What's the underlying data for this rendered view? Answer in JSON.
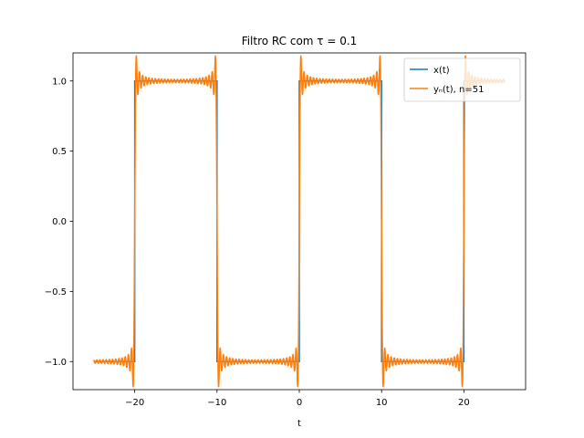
{
  "chart_data": {
    "type": "line",
    "title": "Filtro RC com τ = 0.1",
    "xlabel": "t",
    "ylabel": "",
    "xlim": [
      -27.5,
      27.5
    ],
    "ylim": [
      -1.2,
      1.2
    ],
    "xticks": [
      -20,
      -10,
      0,
      10,
      20
    ],
    "xtick_labels": [
      "−20",
      "−10",
      "0",
      "10",
      "20"
    ],
    "yticks": [
      -1.0,
      -0.5,
      0.0,
      0.5,
      1.0
    ],
    "ytick_labels": [
      "−1.0",
      "−0.5",
      "0.0",
      "0.5",
      "1.0"
    ],
    "grid": false,
    "legend_position": "top-right",
    "series": [
      {
        "name": "x(t)",
        "color": "#1f77b4",
        "x": [
          -25,
          -20,
          -20,
          -10,
          -10,
          0,
          0,
          10,
          10,
          20,
          20,
          25
        ],
        "y": [
          -1,
          -1,
          1,
          1,
          -1,
          -1,
          1,
          1,
          -1,
          -1,
          1,
          1
        ]
      },
      {
        "name": "yₙ(t), n=51",
        "color": "#ff7f0e",
        "x": [
          -25,
          -20,
          -20,
          -10,
          -10,
          0,
          0,
          10,
          10,
          20,
          20,
          25
        ],
        "y": [
          -1,
          -1,
          1,
          1,
          -1,
          -1,
          1,
          1,
          -1,
          -1,
          1,
          1
        ],
        "harmonics": 51,
        "period": 20,
        "tau": 0.1,
        "overshoot_peak": 1.09
      }
    ]
  }
}
